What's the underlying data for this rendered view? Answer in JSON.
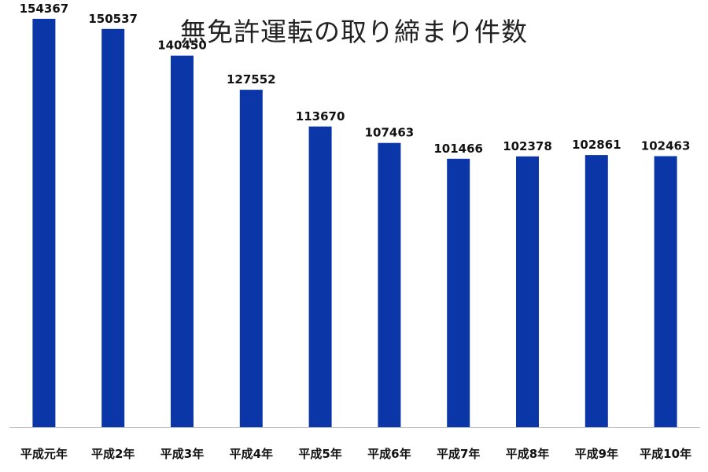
{
  "chart_data": {
    "type": "bar",
    "title": "無免許運転の取り締まり件数",
    "categories": [
      "平成元年",
      "平成2年",
      "平成3年",
      "平成4年",
      "平成5年",
      "平成6年",
      "平成7年",
      "平成8年",
      "平成9年",
      "平成10年"
    ],
    "values": [
      154367,
      150537,
      140450,
      127552,
      113670,
      107463,
      101466,
      102378,
      102861,
      102463
    ],
    "value_labels": [
      "154367",
      "150537",
      "140450",
      "127552",
      "113670",
      "107463",
      "101466",
      "102378",
      "102861",
      "102463"
    ],
    "xlabel": "",
    "ylabel": "",
    "ylim": [
      0,
      160000
    ],
    "grid": false,
    "legend": "none",
    "bar_color": "#0a36a8",
    "axis_color": "#bfbfbf"
  }
}
